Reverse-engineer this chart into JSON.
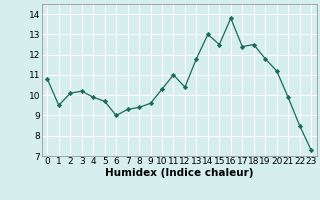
{
  "x": [
    0,
    1,
    2,
    3,
    4,
    5,
    6,
    7,
    8,
    9,
    10,
    11,
    12,
    13,
    14,
    15,
    16,
    17,
    18,
    19,
    20,
    21,
    22,
    23
  ],
  "y": [
    10.8,
    9.5,
    10.1,
    10.2,
    9.9,
    9.7,
    9.0,
    9.3,
    9.4,
    9.6,
    10.3,
    11.0,
    10.4,
    11.8,
    13.0,
    12.5,
    13.8,
    12.4,
    12.5,
    11.8,
    11.2,
    9.9,
    8.5,
    7.3
  ],
  "xlabel": "Humidex (Indice chaleur)",
  "ylim": [
    7,
    14.5
  ],
  "xlim": [
    -0.5,
    23.5
  ],
  "yticks": [
    7,
    8,
    9,
    10,
    11,
    12,
    13,
    14
  ],
  "xticks": [
    0,
    1,
    2,
    3,
    4,
    5,
    6,
    7,
    8,
    9,
    10,
    11,
    12,
    13,
    14,
    15,
    16,
    17,
    18,
    19,
    20,
    21,
    22,
    23
  ],
  "line_color": "#1a6b5a",
  "marker": "D",
  "marker_size": 2.2,
  "bg_color": "#d6eeee",
  "grid_color": "#ffffff",
  "tick_label_fontsize": 6.5,
  "xlabel_fontsize": 7.5
}
